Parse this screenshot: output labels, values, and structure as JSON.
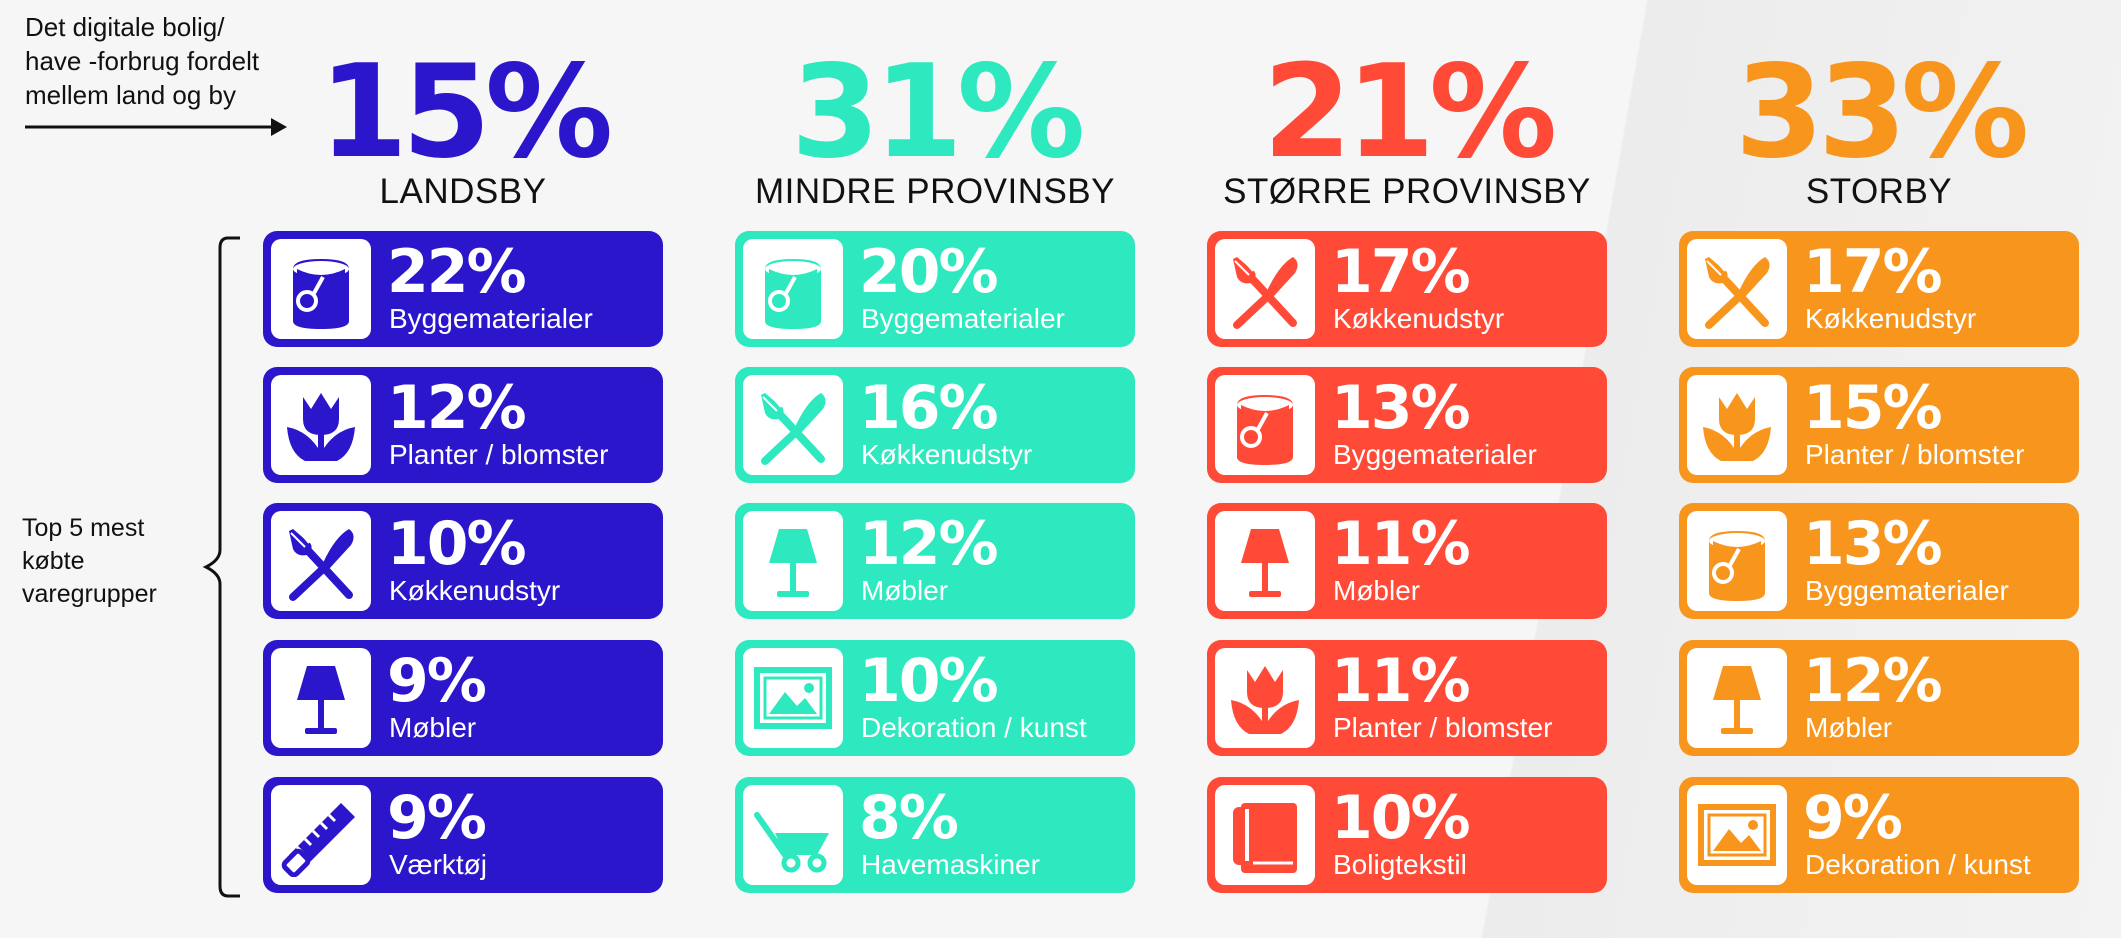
{
  "intro": {
    "line1": "Det digitale bolig/",
    "line2": "have -forbrug fordelt",
    "line3": "mellem land og by"
  },
  "side_label": {
    "line1": "Top 5 mest",
    "line2": "købte",
    "line3": "varegrupper"
  },
  "colors": {
    "landsby": "#2b16cc",
    "mindre": "#2ee8bf",
    "stoerre": "#ff4a38",
    "storby": "#f8951d"
  },
  "columns": [
    {
      "pct": "15%",
      "city": "LANDSBY",
      "items": [
        {
          "pct": "22%",
          "label": "Byggematerialer",
          "icon": "paint-bucket"
        },
        {
          "pct": "12%",
          "label": "Planter / blomster",
          "icon": "tulip"
        },
        {
          "pct": "10%",
          "label": "Køkkenudstyr",
          "icon": "fork-knife"
        },
        {
          "pct": "9%",
          "label": "Møbler",
          "icon": "lamp"
        },
        {
          "pct": "9%",
          "label": "Værktøj",
          "icon": "saw"
        }
      ]
    },
    {
      "pct": "31%",
      "city": "MINDRE PROVINSBY",
      "items": [
        {
          "pct": "20%",
          "label": "Byggematerialer",
          "icon": "paint-bucket"
        },
        {
          "pct": "16%",
          "label": "Køkkenudstyr",
          "icon": "fork-knife"
        },
        {
          "pct": "12%",
          "label": "Møbler",
          "icon": "lamp"
        },
        {
          "pct": "10%",
          "label": "Dekoration / kunst",
          "icon": "picture"
        },
        {
          "pct": "8%",
          "label": "Havemaskiner",
          "icon": "wheelbarrow"
        }
      ]
    },
    {
      "pct": "21%",
      "city": "STØRRE PROVINSBY",
      "items": [
        {
          "pct": "17%",
          "label": "Køkkenudstyr",
          "icon": "fork-knife"
        },
        {
          "pct": "13%",
          "label": "Byggematerialer",
          "icon": "paint-bucket"
        },
        {
          "pct": "11%",
          "label": "Møbler",
          "icon": "lamp"
        },
        {
          "pct": "11%",
          "label": "Planter / blomster",
          "icon": "tulip"
        },
        {
          "pct": "10%",
          "label": "Boligtekstil",
          "icon": "towel"
        }
      ]
    },
    {
      "pct": "33%",
      "city": "STORBY",
      "items": [
        {
          "pct": "17%",
          "label": "Køkkenudstyr",
          "icon": "fork-knife"
        },
        {
          "pct": "15%",
          "label": "Planter / blomster",
          "icon": "tulip"
        },
        {
          "pct": "13%",
          "label": "Byggematerialer",
          "icon": "paint-bucket"
        },
        {
          "pct": "12%",
          "label": "Møbler",
          "icon": "lamp"
        },
        {
          "pct": "9%",
          "label": "Dekoration / kunst",
          "icon": "picture"
        }
      ]
    }
  ]
}
